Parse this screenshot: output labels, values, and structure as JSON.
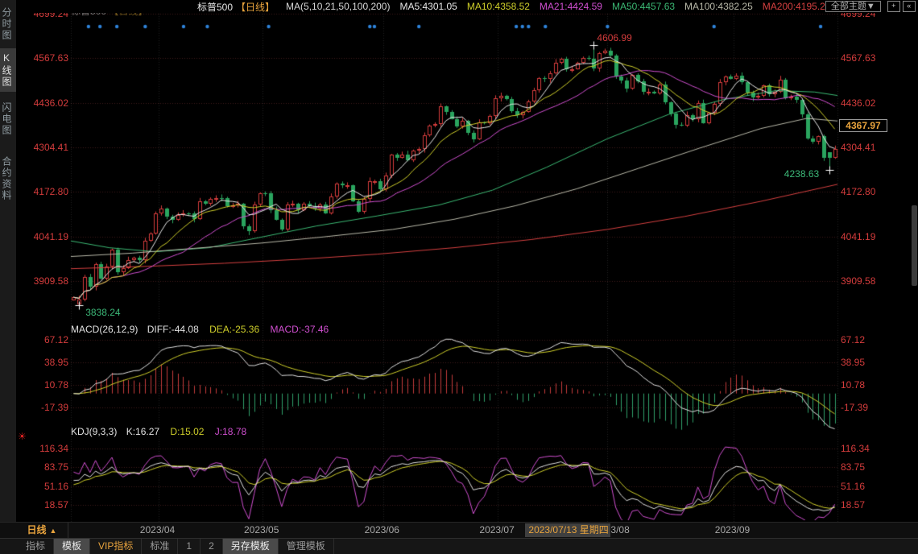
{
  "header": {
    "title": "标普500",
    "period": "【日线】",
    "ma_settings": "MA(5,10,21,50,100,200)",
    "ma_values": [
      {
        "label": "MA5:4301.05",
        "color": "#e8e8e8"
      },
      {
        "label": "MA10:4358.52",
        "color": "#cfcf2a"
      },
      {
        "label": "MA21:4424.59",
        "color": "#d04fd0"
      },
      {
        "label": "MA50:4457.63",
        "color": "#3bb873"
      },
      {
        "label": "MA100:4382.25",
        "color": "#b8b8a8"
      },
      {
        "label": "MA200:4195.2",
        "color": "#d54040"
      }
    ],
    "theme_button": "全部主题▼",
    "icons": [
      {
        "name": "pan-crosshair-icon",
        "glyph": "+"
      },
      {
        "name": "shift-left-icon",
        "glyph": "«"
      },
      {
        "name": "shift-right-icon",
        "glyph": "»"
      },
      {
        "name": "go-latest-icon",
        "glyph": "↦"
      }
    ]
  },
  "sidebar": {
    "tabs": [
      {
        "label": "分时图",
        "active": false
      },
      {
        "label": "K线图",
        "active": true
      },
      {
        "label": "闪电图",
        "active": false
      },
      {
        "label": "合约资料",
        "active": false
      }
    ]
  },
  "main_panel": {
    "y_ticks": [
      "4699.24",
      "4567.63",
      "4436.02",
      "4304.41",
      "4172.80",
      "4041.19",
      "3909.58"
    ],
    "price_tag": "4367.97",
    "low_left_label": "3838.24",
    "high_label": "4606.99",
    "low_right_label": "4238.63"
  },
  "macd_panel": {
    "title": "MACD(26,12,9)",
    "diff_label": "DIFF:-44.08",
    "dea_label": "DEA:-25.36",
    "macd_label": "MACD:-37.46",
    "y_ticks": [
      "67.12",
      "38.95",
      "10.78",
      "-17.39"
    ]
  },
  "kdj_panel": {
    "title": "KDJ(9,3,3)",
    "k_label": "K:16.27",
    "d_label": "D:15.02",
    "j_label": "J:18.78",
    "y_ticks": [
      "116.34",
      "83.75",
      "51.16",
      "18.57"
    ]
  },
  "time_axis": {
    "period_label": "日线",
    "period_arrow": "▲",
    "months": [
      "2023/04",
      "2023/05",
      "2023/06",
      "2023/07",
      "2023/08",
      "2023/09"
    ],
    "aug_remnant": "3/08",
    "highlight_date": "2023/07/13 星期四"
  },
  "bottom_bar": {
    "items": [
      {
        "label": "指标",
        "style": "plain"
      },
      {
        "label": "模板",
        "style": "selected"
      },
      {
        "label": "VIP指标",
        "style": "vip"
      },
      {
        "label": "标准",
        "style": "plain"
      },
      {
        "label": "1",
        "style": "plain"
      },
      {
        "label": "2",
        "style": "plain"
      },
      {
        "label": "另存模板",
        "style": "selected"
      },
      {
        "label": "管理模板",
        "style": "plain"
      }
    ]
  },
  "chart_data": {
    "type": "candlestick+indicators",
    "symbol": "标普500",
    "period": "日线",
    "price_ticks": [
      4699.24,
      4567.63,
      4436.02,
      4304.41,
      4172.8,
      4041.19,
      3909.58
    ],
    "macd_ticks": [
      67.12,
      38.95,
      10.78,
      -17.39
    ],
    "kdj_ticks": [
      116.34,
      83.75,
      51.16,
      18.57
    ],
    "current_price": 4367.97,
    "closes": [
      3861.6,
      3855.8,
      3920.6,
      3891.9,
      3960.3,
      3916.6,
      3951.6,
      4002.9,
      3936.9,
      3948.7,
      3971.0,
      3977.5,
      3971.3,
      4027.8,
      4050.8,
      4109.3,
      4124.5,
      4100.6,
      4090.4,
      4105.0,
      4109.1,
      4108.9,
      4091.9,
      4146.2,
      4137.6,
      4151.3,
      4154.9,
      4154.5,
      4129.8,
      4133.5,
      4137.0,
      4071.6,
      4056.0,
      4135.4,
      4169.5,
      4167.9,
      4119.6,
      4090.8,
      4061.2,
      4136.3,
      4138.1,
      4119.2,
      4137.6,
      4130.6,
      4124.1,
      4136.3,
      4109.9,
      4158.8,
      4198.0,
      4192.0,
      4192.6,
      4145.6,
      4115.2,
      4151.3,
      4205.4,
      4205.5,
      4179.8,
      4221.0,
      4282.4,
      4273.8,
      4283.9,
      4267.5,
      4293.9,
      4298.9,
      4338.9,
      4369.0,
      4372.6,
      4425.8,
      4409.6,
      4388.7,
      4365.7,
      4381.9,
      4348.3,
      4328.8,
      4378.4,
      4376.9,
      4396.4,
      4450.4,
      4455.6,
      4446.8,
      4411.6,
      4399.0,
      4409.5,
      4439.3,
      4472.2,
      4510.0,
      4505.4,
      4522.8,
      4555.0,
      4565.7,
      4534.9,
      4536.3,
      4554.6,
      4567.5,
      4566.8,
      4537.4,
      4582.2,
      4589.0,
      4576.7,
      4513.4,
      4501.9,
      4478.0,
      4518.4,
      4499.4,
      4467.7,
      4468.8,
      4464.1,
      4489.7,
      4437.9,
      4404.3,
      4370.4,
      4369.7,
      4399.8,
      4387.6,
      4436.0,
      4376.3,
      4405.7,
      4433.3,
      4497.6,
      4514.9,
      4507.7,
      4515.8,
      4496.8,
      4465.5,
      4451.1,
      4457.5,
      4487.5,
      4461.9,
      4467.4,
      4505.1,
      4450.3,
      4453.5,
      4444.0,
      4402.2,
      4330.0,
      4320.1,
      4337.4,
      4273.5,
      4274.5,
      4299.7
    ],
    "month_start_indices": [
      16,
      35,
      57,
      78,
      98,
      121
    ],
    "overrides": {
      "0": {
        "open": 3852.0
      },
      "1": {
        "open": 3840.0,
        "low": 3838.24
      },
      "95": {
        "high": 4606.99
      },
      "138": {
        "open": 4290.0,
        "low": 4238.63
      }
    },
    "markers": {
      "low_left": {
        "index": 1,
        "price": 3838.24
      },
      "high": {
        "index": 95,
        "price": 4606.99
      },
      "low_right": {
        "index": 138,
        "price": 4238.63
      }
    },
    "event_dot_fracs": [
      0.023,
      0.038,
      0.06,
      0.097,
      0.147,
      0.178,
      0.258,
      0.39,
      0.396,
      0.454,
      0.581,
      0.589,
      0.597,
      0.619,
      0.7,
      0.839,
      0.978
    ],
    "ma_long_polylines": {
      "ma50": [
        [
          0,
          4028
        ],
        [
          0.05,
          4008
        ],
        [
          0.11,
          3996
        ],
        [
          0.18,
          4008
        ],
        [
          0.25,
          4040
        ],
        [
          0.32,
          4072
        ],
        [
          0.4,
          4102
        ],
        [
          0.48,
          4134
        ],
        [
          0.55,
          4178
        ],
        [
          0.62,
          4245
        ],
        [
          0.7,
          4330
        ],
        [
          0.78,
          4402
        ],
        [
          0.85,
          4445
        ],
        [
          0.92,
          4472
        ],
        [
          0.97,
          4468
        ],
        [
          1,
          4457.6
        ]
      ],
      "ma100": [
        [
          0,
          3982
        ],
        [
          0.08,
          3992
        ],
        [
          0.16,
          4006
        ],
        [
          0.25,
          4022
        ],
        [
          0.33,
          4040
        ],
        [
          0.42,
          4062
        ],
        [
          0.5,
          4092
        ],
        [
          0.58,
          4132
        ],
        [
          0.66,
          4182
        ],
        [
          0.74,
          4242
        ],
        [
          0.82,
          4302
        ],
        [
          0.9,
          4360
        ],
        [
          0.96,
          4390
        ],
        [
          1,
          4382.3
        ]
      ],
      "ma200": [
        [
          0,
          3946
        ],
        [
          0.1,
          3953
        ],
        [
          0.2,
          3962
        ],
        [
          0.3,
          3974
        ],
        [
          0.4,
          3989
        ],
        [
          0.5,
          4008
        ],
        [
          0.6,
          4032
        ],
        [
          0.7,
          4062
        ],
        [
          0.8,
          4100
        ],
        [
          0.9,
          4145
        ],
        [
          1,
          4195.2
        ]
      ]
    },
    "colors": {
      "up": "#d23b3b",
      "down": "#2aa45e",
      "ma5": "#e8e8e8",
      "ma10": "#cfcf2a",
      "ma21": "#d04fd0",
      "ma50": "#3bb873",
      "ma100": "#b8b8a8",
      "ma200": "#d54040",
      "diff_line": "#e0e0e0",
      "dea_line": "#cfcf2a",
      "k_line": "#e0e0e0",
      "d_line": "#cfcf2a",
      "j_line": "#d04fd0",
      "hist_pos": "#c53b3b",
      "hist_neg": "#2f9e68",
      "grid_h": "rgba(190,85,85,0.32)",
      "grid_v": "rgba(150,150,150,0.22)",
      "event_dot": "#2e82d8",
      "axis_text": "#d43c3c",
      "marker_cross": "#ffffff"
    }
  }
}
